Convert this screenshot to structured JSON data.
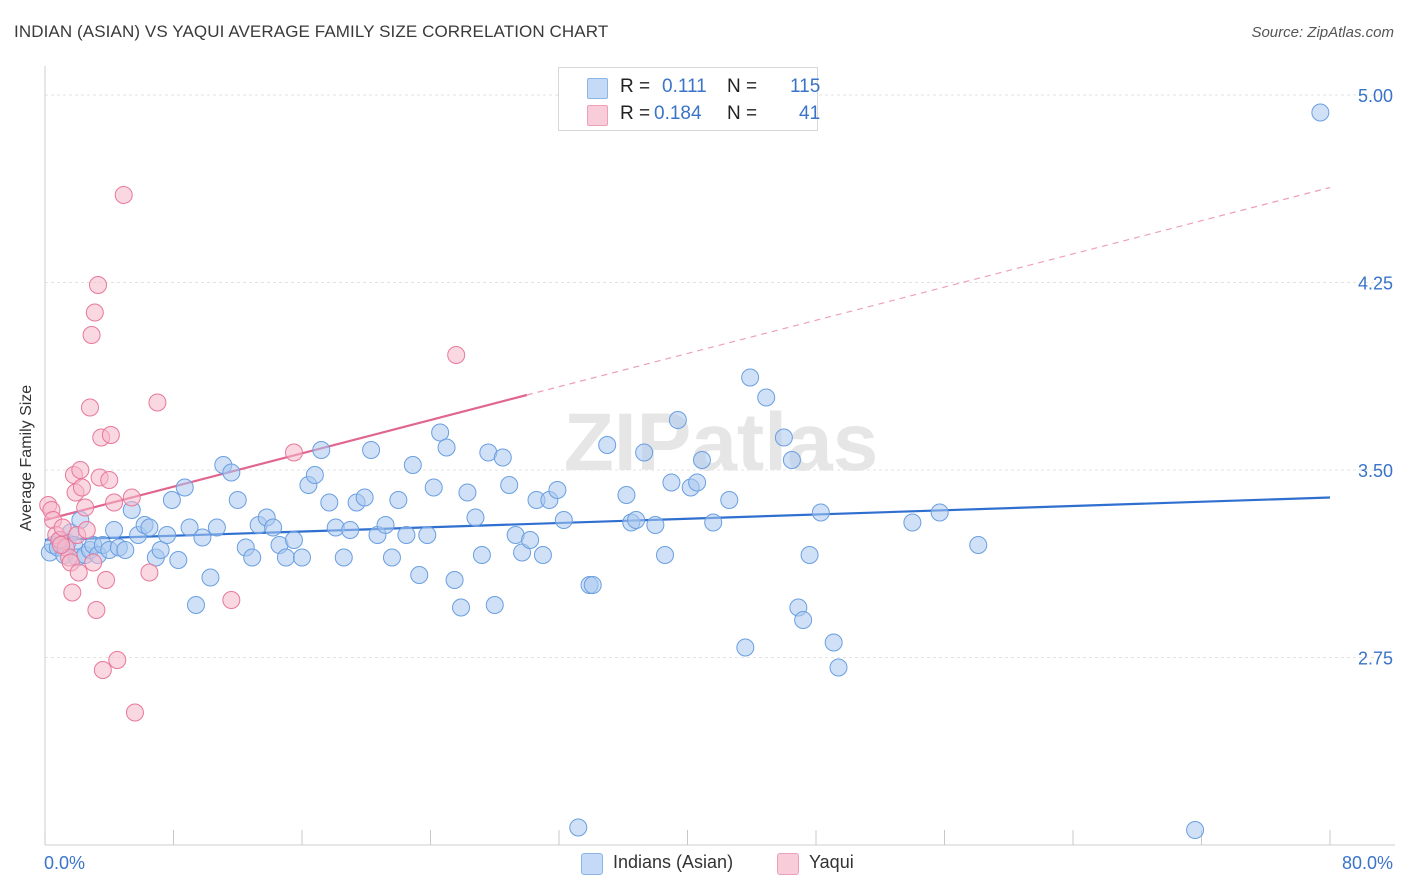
{
  "header": {
    "title": "INDIAN (ASIAN) VS YAQUI AVERAGE FAMILY SIZE CORRELATION CHART",
    "source": "Source: ZipAtlas.com"
  },
  "watermark": "ZIPatlas",
  "legend": {
    "rows": [
      {
        "r_label": "R =",
        "r_value": "0.111",
        "n_label": "N =",
        "n_value": "115",
        "color": "#a9c8f0"
      },
      {
        "r_label": "R =",
        "r_value": "0.184",
        "n_label": "N =",
        "n_value": "41",
        "color": "#f6b8cb"
      }
    ]
  },
  "bottom_legend": {
    "items": [
      {
        "label": "Indians (Asian)",
        "color": "#a9c8f0"
      },
      {
        "label": "Yaqui",
        "color": "#f6b8cb"
      }
    ]
  },
  "chart_data": {
    "type": "scatter",
    "title": "INDIAN (ASIAN) VS YAQUI AVERAGE FAMILY SIZE CORRELATION CHART",
    "xlabel": "",
    "ylabel": "Average Family Size",
    "xlim": [
      0,
      80
    ],
    "ylim": [
      2.0,
      5.0
    ],
    "x_tick_labels": [
      "0.0%",
      "80.0%"
    ],
    "y_ticks": [
      2.75,
      3.5,
      4.25,
      5.0
    ],
    "y_tick_labels": [
      "2.75",
      "3.50",
      "4.25",
      "5.00"
    ],
    "grid": true,
    "series": [
      {
        "name": "Indians (Asian)",
        "color": "#6a9fe0",
        "fill": "#a9c8f0",
        "trend": {
          "x": [
            0,
            80
          ],
          "y": [
            3.22,
            3.39
          ]
        },
        "points": [
          [
            0.3,
            3.17
          ],
          [
            0.5,
            3.2
          ],
          [
            0.8,
            3.19
          ],
          [
            1.0,
            3.22
          ],
          [
            1.2,
            3.16
          ],
          [
            1.4,
            3.21
          ],
          [
            1.6,
            3.25
          ],
          [
            1.8,
            3.2
          ],
          [
            2.0,
            3.15
          ],
          [
            2.2,
            3.3
          ],
          [
            2.5,
            3.16
          ],
          [
            2.8,
            3.18
          ],
          [
            3.0,
            3.2
          ],
          [
            3.3,
            3.16
          ],
          [
            3.6,
            3.2
          ],
          [
            4.0,
            3.18
          ],
          [
            4.3,
            3.26
          ],
          [
            4.6,
            3.19
          ],
          [
            5.0,
            3.18
          ],
          [
            5.4,
            3.34
          ],
          [
            5.8,
            3.24
          ],
          [
            6.2,
            3.28
          ],
          [
            6.5,
            3.27
          ],
          [
            6.9,
            3.15
          ],
          [
            7.2,
            3.18
          ],
          [
            7.6,
            3.24
          ],
          [
            7.9,
            3.38
          ],
          [
            8.3,
            3.14
          ],
          [
            8.7,
            3.43
          ],
          [
            9.0,
            3.27
          ],
          [
            9.4,
            2.96
          ],
          [
            9.8,
            3.23
          ],
          [
            10.3,
            3.07
          ],
          [
            10.7,
            3.27
          ],
          [
            11.1,
            3.52
          ],
          [
            11.6,
            3.49
          ],
          [
            12.0,
            3.38
          ],
          [
            12.5,
            3.19
          ],
          [
            12.9,
            3.15
          ],
          [
            13.3,
            3.28
          ],
          [
            13.8,
            3.31
          ],
          [
            14.2,
            3.27
          ],
          [
            14.6,
            3.2
          ],
          [
            15.0,
            3.15
          ],
          [
            15.5,
            3.22
          ],
          [
            16.0,
            3.15
          ],
          [
            16.4,
            3.44
          ],
          [
            16.8,
            3.48
          ],
          [
            17.2,
            3.58
          ],
          [
            17.7,
            3.37
          ],
          [
            18.1,
            3.27
          ],
          [
            18.6,
            3.15
          ],
          [
            19.0,
            3.26
          ],
          [
            19.4,
            3.37
          ],
          [
            19.9,
            3.39
          ],
          [
            20.3,
            3.58
          ],
          [
            20.7,
            3.24
          ],
          [
            21.2,
            3.28
          ],
          [
            21.6,
            3.15
          ],
          [
            22.0,
            3.38
          ],
          [
            22.5,
            3.24
          ],
          [
            22.9,
            3.52
          ],
          [
            23.3,
            3.08
          ],
          [
            23.8,
            3.24
          ],
          [
            24.2,
            3.43
          ],
          [
            24.6,
            3.65
          ],
          [
            25.0,
            3.59
          ],
          [
            25.5,
            3.06
          ],
          [
            25.9,
            2.95
          ],
          [
            26.3,
            3.41
          ],
          [
            26.8,
            3.31
          ],
          [
            27.2,
            3.16
          ],
          [
            27.6,
            3.57
          ],
          [
            28.0,
            2.96
          ],
          [
            28.5,
            3.55
          ],
          [
            28.9,
            3.44
          ],
          [
            29.3,
            3.24
          ],
          [
            29.7,
            3.17
          ],
          [
            30.2,
            3.22
          ],
          [
            30.6,
            3.38
          ],
          [
            31.0,
            3.16
          ],
          [
            31.4,
            3.38
          ],
          [
            31.9,
            3.42
          ],
          [
            32.3,
            3.3
          ],
          [
            33.9,
            3.04
          ],
          [
            34.1,
            3.04
          ],
          [
            35.0,
            3.6
          ],
          [
            36.2,
            3.4
          ],
          [
            36.5,
            3.29
          ],
          [
            36.8,
            3.3
          ],
          [
            37.3,
            3.57
          ],
          [
            38.0,
            3.28
          ],
          [
            38.6,
            3.16
          ],
          [
            39.0,
            3.45
          ],
          [
            39.4,
            3.7
          ],
          [
            40.2,
            3.43
          ],
          [
            40.6,
            3.45
          ],
          [
            40.9,
            3.54
          ],
          [
            41.6,
            3.29
          ],
          [
            42.6,
            3.38
          ],
          [
            43.6,
            2.79
          ],
          [
            43.9,
            3.87
          ],
          [
            44.9,
            3.79
          ],
          [
            46.0,
            3.63
          ],
          [
            46.5,
            3.54
          ],
          [
            46.9,
            2.95
          ],
          [
            47.2,
            2.9
          ],
          [
            47.6,
            3.16
          ],
          [
            48.3,
            3.33
          ],
          [
            49.1,
            2.81
          ],
          [
            49.4,
            2.71
          ],
          [
            54.0,
            3.29
          ],
          [
            55.7,
            3.33
          ],
          [
            58.1,
            3.2
          ],
          [
            33.2,
            2.07
          ],
          [
            71.6,
            2.06
          ],
          [
            79.4,
            4.93
          ]
        ]
      },
      {
        "name": "Yaqui",
        "color": "#e8789b",
        "fill": "#f6b8cb",
        "trend": {
          "x": [
            0,
            30
          ],
          "y": [
            3.3,
            3.8
          ]
        },
        "trend_extension": {
          "x": [
            30,
            80
          ],
          "y": [
            3.8,
            4.63
          ]
        },
        "points": [
          [
            0.2,
            3.36
          ],
          [
            0.4,
            3.34
          ],
          [
            0.5,
            3.3
          ],
          [
            0.7,
            3.24
          ],
          [
            0.9,
            3.22
          ],
          [
            1.1,
            3.27
          ],
          [
            1.3,
            3.19
          ],
          [
            1.5,
            3.15
          ],
          [
            1.6,
            3.13
          ],
          [
            1.7,
            3.01
          ],
          [
            1.8,
            3.48
          ],
          [
            1.9,
            3.41
          ],
          [
            2.0,
            3.24
          ],
          [
            2.1,
            3.09
          ],
          [
            2.2,
            3.5
          ],
          [
            2.3,
            3.43
          ],
          [
            2.5,
            3.35
          ],
          [
            2.6,
            3.26
          ],
          [
            2.8,
            3.75
          ],
          [
            2.9,
            4.04
          ],
          [
            3.0,
            3.13
          ],
          [
            3.1,
            4.13
          ],
          [
            3.2,
            2.94
          ],
          [
            3.3,
            4.24
          ],
          [
            3.4,
            3.47
          ],
          [
            3.5,
            3.63
          ],
          [
            3.6,
            2.7
          ],
          [
            3.8,
            3.06
          ],
          [
            4.0,
            3.46
          ],
          [
            4.1,
            3.64
          ],
          [
            4.3,
            3.37
          ],
          [
            4.5,
            2.74
          ],
          [
            4.9,
            4.6
          ],
          [
            5.4,
            3.39
          ],
          [
            5.6,
            2.53
          ],
          [
            6.5,
            3.09
          ],
          [
            7.0,
            3.77
          ],
          [
            11.6,
            2.98
          ],
          [
            15.5,
            3.57
          ],
          [
            25.6,
            3.96
          ],
          [
            1.0,
            3.2
          ]
        ]
      }
    ]
  }
}
